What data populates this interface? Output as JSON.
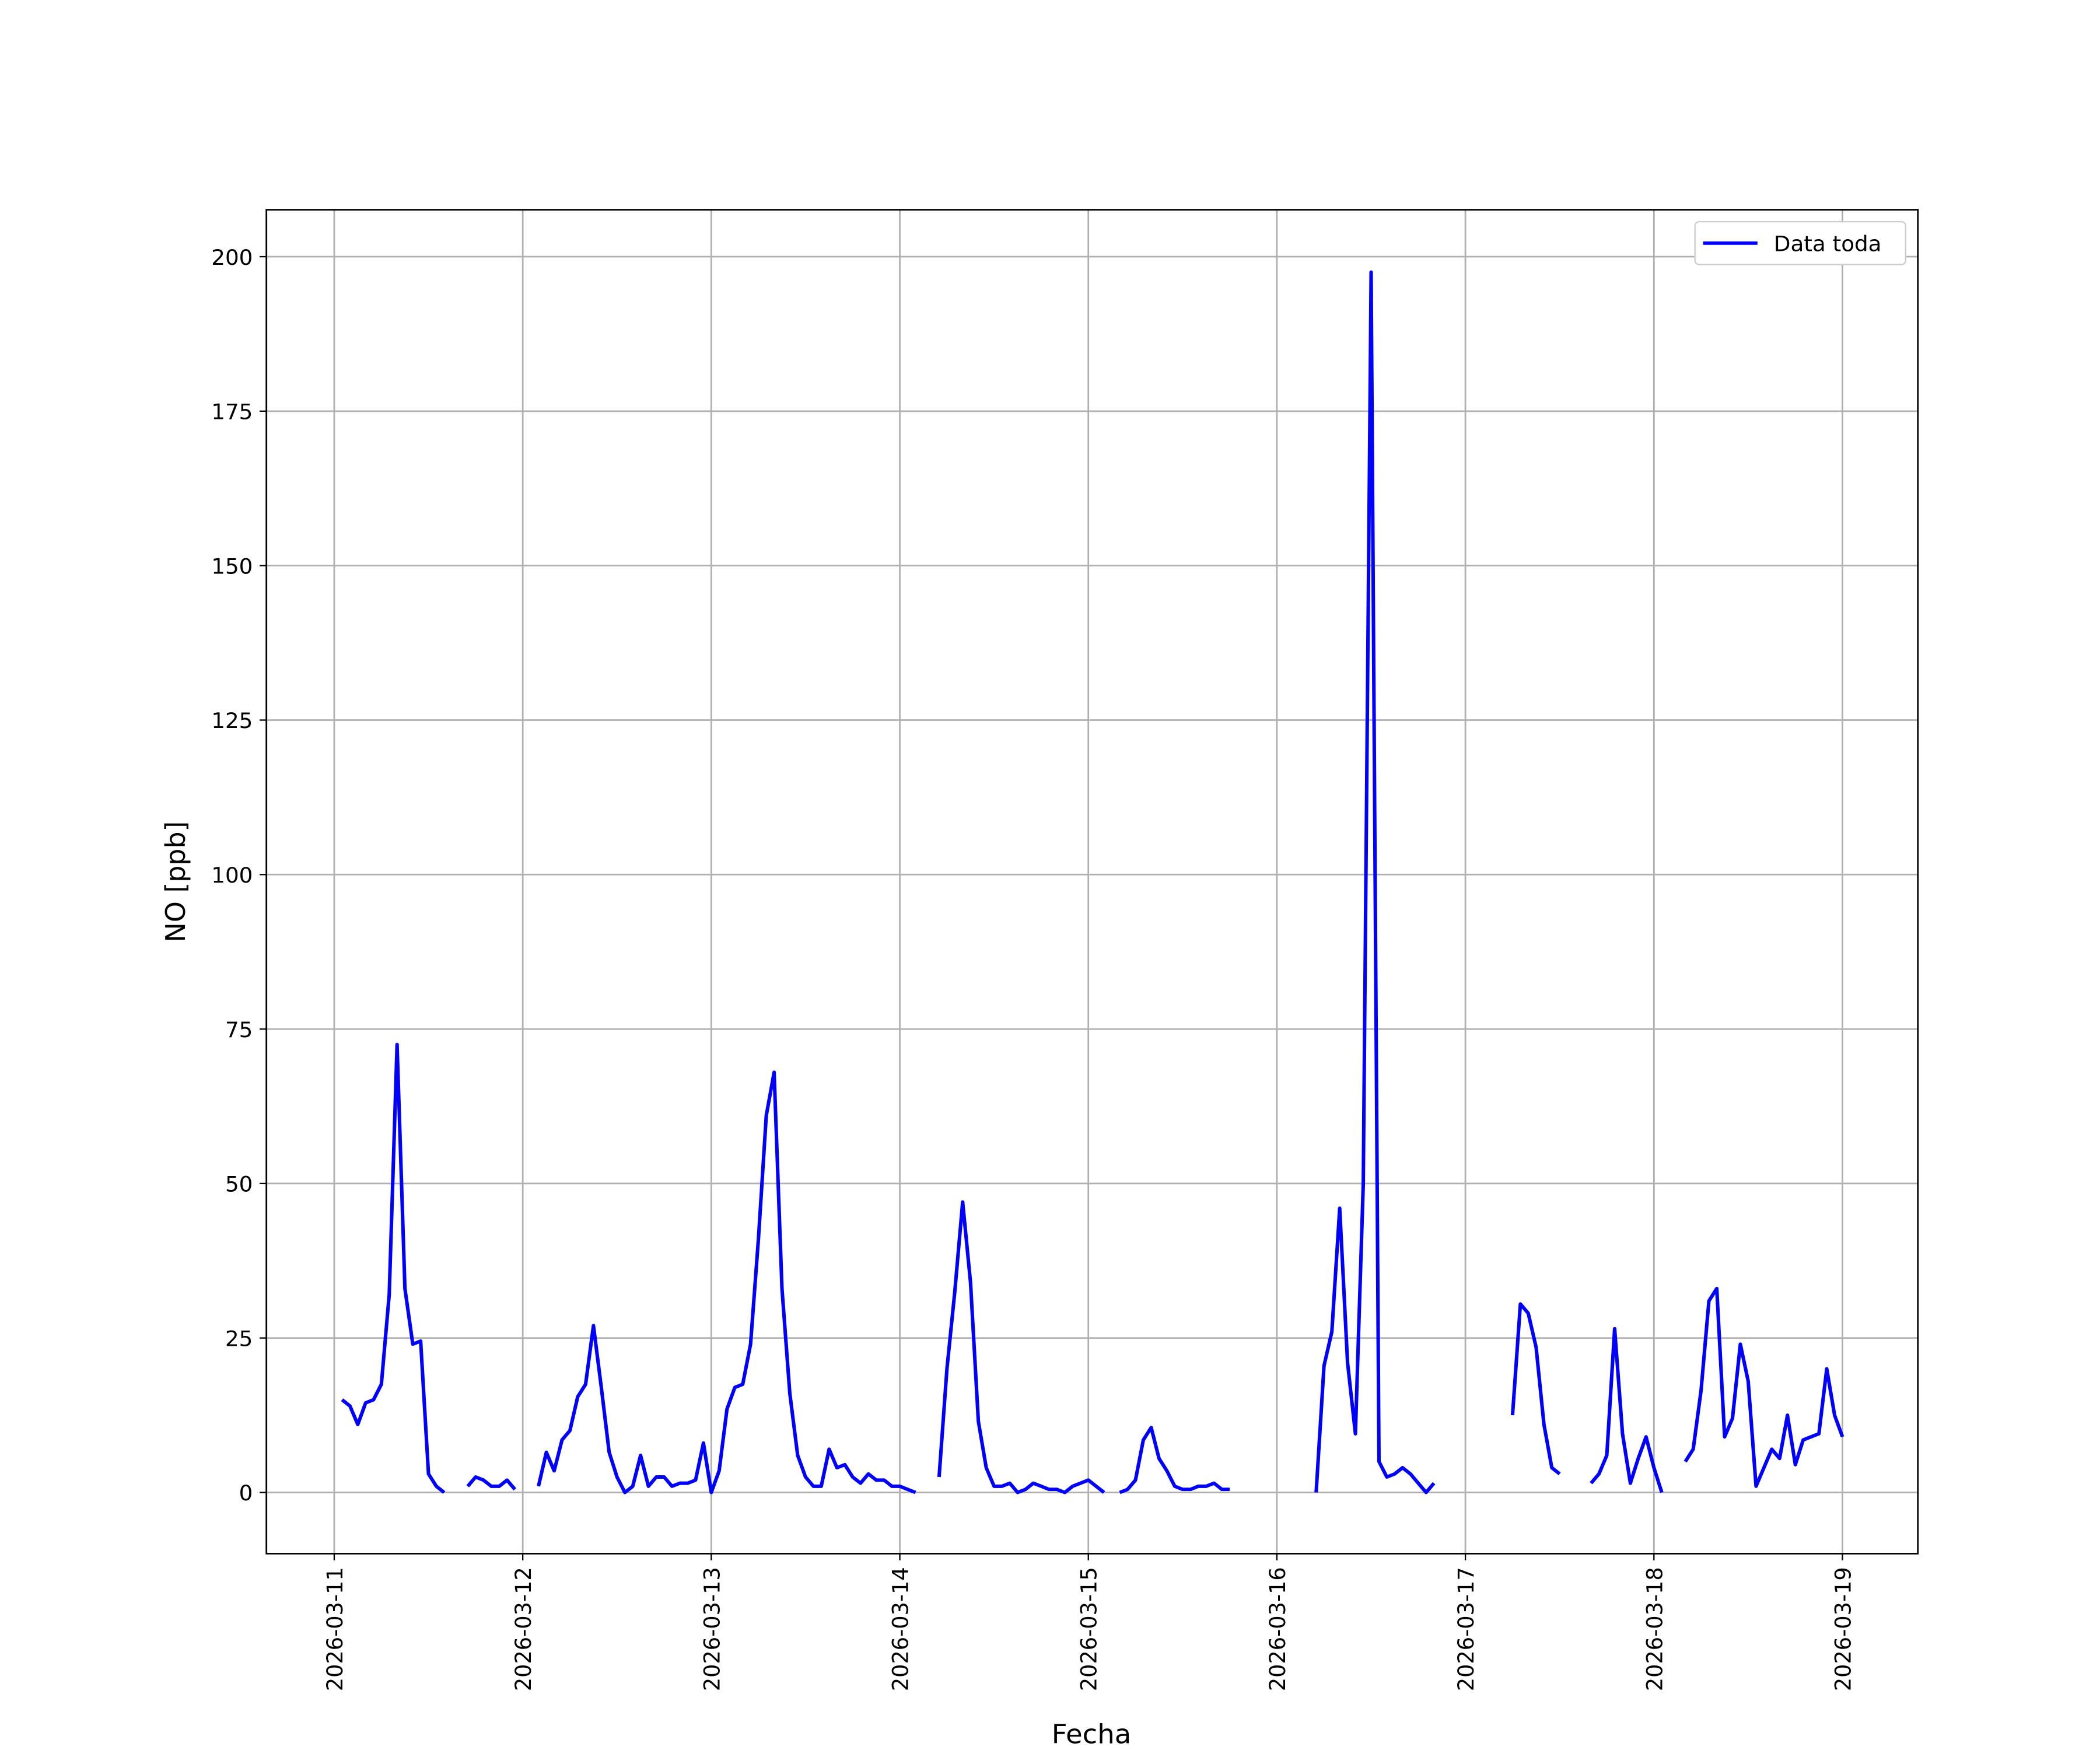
{
  "chart_data": {
    "type": "line",
    "xlabel": "Fecha",
    "ylabel": "NO [ppb]",
    "x": [
      "2026-03-11T01:00",
      "2026-03-11T02:00",
      "2026-03-11T03:00",
      "2026-03-11T04:00",
      "2026-03-11T05:00",
      "2026-03-11T06:00",
      "2026-03-11T07:00",
      "2026-03-11T08:00",
      "2026-03-11T09:00",
      "2026-03-11T10:00",
      "2026-03-11T11:00",
      "2026-03-11T12:00",
      "2026-03-11T13:00",
      "2026-03-11T14:00",
      "2026-03-11T15:00",
      "2026-03-11T17:00",
      "2026-03-11T18:00",
      "2026-03-11T19:00",
      "2026-03-11T20:00",
      "2026-03-11T21:00",
      "2026-03-11T22:00",
      "2026-03-11T23:00",
      "2026-03-12T00:00",
      "2026-03-12T02:00",
      "2026-03-12T03:00",
      "2026-03-12T04:00",
      "2026-03-12T05:00",
      "2026-03-12T06:00",
      "2026-03-12T07:00",
      "2026-03-12T08:00",
      "2026-03-12T09:00",
      "2026-03-12T10:00",
      "2026-03-12T11:00",
      "2026-03-12T12:00",
      "2026-03-12T13:00",
      "2026-03-12T14:00",
      "2026-03-12T15:00",
      "2026-03-12T16:00",
      "2026-03-12T17:00",
      "2026-03-12T18:00",
      "2026-03-12T19:00",
      "2026-03-12T20:00",
      "2026-03-12T21:00",
      "2026-03-12T22:00",
      "2026-03-12T23:00",
      "2026-03-13T00:00",
      "2026-03-13T01:00",
      "2026-03-13T02:00",
      "2026-03-13T03:00",
      "2026-03-13T04:00",
      "2026-03-13T05:00",
      "2026-03-13T06:00",
      "2026-03-13T07:00",
      "2026-03-13T08:00",
      "2026-03-13T09:00",
      "2026-03-13T10:00",
      "2026-03-13T11:00",
      "2026-03-13T12:00",
      "2026-03-13T13:00",
      "2026-03-13T14:00",
      "2026-03-13T15:00",
      "2026-03-13T16:00",
      "2026-03-13T17:00",
      "2026-03-13T18:00",
      "2026-03-13T19:00",
      "2026-03-13T20:00",
      "2026-03-13T21:00",
      "2026-03-13T22:00",
      "2026-03-13T23:00",
      "2026-03-14T00:00",
      "2026-03-14T01:00",
      "2026-03-14T02:00",
      "2026-03-14T03:00",
      "2026-03-14T05:00",
      "2026-03-14T06:00",
      "2026-03-14T07:00",
      "2026-03-14T08:00",
      "2026-03-14T09:00",
      "2026-03-14T10:00",
      "2026-03-14T11:00",
      "2026-03-14T12:00",
      "2026-03-14T13:00",
      "2026-03-14T14:00",
      "2026-03-14T15:00",
      "2026-03-14T16:00",
      "2026-03-14T17:00",
      "2026-03-14T18:00",
      "2026-03-14T19:00",
      "2026-03-14T20:00",
      "2026-03-14T21:00",
      "2026-03-14T22:00",
      "2026-03-14T23:00",
      "2026-03-15T00:00",
      "2026-03-15T01:00",
      "2026-03-15T02:00",
      "2026-03-15T03:00",
      "2026-03-15T04:00",
      "2026-03-15T05:00",
      "2026-03-15T06:00",
      "2026-03-15T07:00",
      "2026-03-15T08:00",
      "2026-03-15T09:00",
      "2026-03-15T10:00",
      "2026-03-15T11:00",
      "2026-03-15T12:00",
      "2026-03-15T13:00",
      "2026-03-15T14:00",
      "2026-03-15T15:00",
      "2026-03-15T16:00",
      "2026-03-15T17:00",
      "2026-03-15T18:00",
      "2026-03-15T19:00",
      "2026-03-16T05:00",
      "2026-03-16T06:00",
      "2026-03-16T07:00",
      "2026-03-16T08:00",
      "2026-03-16T09:00",
      "2026-03-16T10:00",
      "2026-03-16T11:00",
      "2026-03-16T12:00",
      "2026-03-16T13:00",
      "2026-03-16T14:00",
      "2026-03-16T15:00",
      "2026-03-16T16:00",
      "2026-03-16T17:00",
      "2026-03-16T18:00",
      "2026-03-16T19:00",
      "2026-03-16T20:00",
      "2026-03-16T21:00",
      "2026-03-17T06:00",
      "2026-03-17T07:00",
      "2026-03-17T08:00",
      "2026-03-17T09:00",
      "2026-03-17T10:00",
      "2026-03-17T11:00",
      "2026-03-17T12:00",
      "2026-03-17T13:00",
      "2026-03-17T16:00",
      "2026-03-17T17:00",
      "2026-03-17T18:00",
      "2026-03-17T19:00",
      "2026-03-17T20:00",
      "2026-03-17T21:00",
      "2026-03-17T22:00",
      "2026-03-17T23:00",
      "2026-03-18T00:00",
      "2026-03-18T01:00",
      "2026-03-18T02:00",
      "2026-03-18T04:00",
      "2026-03-18T05:00",
      "2026-03-18T06:00",
      "2026-03-18T07:00",
      "2026-03-18T08:00",
      "2026-03-18T09:00",
      "2026-03-18T10:00",
      "2026-03-18T11:00",
      "2026-03-18T12:00",
      "2026-03-18T13:00",
      "2026-03-18T14:00",
      "2026-03-18T15:00",
      "2026-03-18T16:00",
      "2026-03-18T17:00",
      "2026-03-18T18:00",
      "2026-03-18T19:00",
      "2026-03-18T20:00",
      "2026-03-18T21:00",
      "2026-03-18T22:00",
      "2026-03-18T23:00",
      "2026-03-19T00:00"
    ],
    "series": [
      {
        "name": "Data toda",
        "color": "#0000ff",
        "values": [
          15,
          14,
          11,
          14.5,
          15,
          17.5,
          32,
          72.5,
          33,
          24,
          24.5,
          3,
          1,
          0,
          null,
          1,
          2.5,
          2,
          1,
          1,
          2,
          0.5,
          null,
          1,
          6.5,
          3.5,
          8.5,
          10,
          15.5,
          17.5,
          27,
          17,
          6.5,
          2.5,
          0,
          1,
          6,
          1,
          2.5,
          2.5,
          1,
          1.5,
          1.5,
          2,
          8,
          0,
          3.5,
          13.5,
          17,
          17.5,
          24,
          41,
          61,
          68,
          33,
          16,
          6,
          2.5,
          1,
          1,
          7,
          4,
          4.5,
          2.5,
          1.5,
          3,
          2,
          2,
          1,
          1,
          0.5,
          0,
          null,
          2.5,
          20,
          32.5,
          47,
          34,
          11.5,
          4,
          1,
          1,
          1.5,
          0,
          0.5,
          1.5,
          1,
          0.5,
          0.5,
          0,
          1,
          1.5,
          2,
          1,
          0,
          null,
          0,
          0.5,
          2,
          8.5,
          10.5,
          5.5,
          3.5,
          1,
          0.5,
          0.5,
          1,
          1,
          1.5,
          0.5,
          0.5,
          null,
          0,
          20.5,
          26,
          46,
          21,
          9.5,
          50,
          197.5,
          5,
          2.5,
          3,
          4,
          3,
          1.5,
          0,
          1.5,
          null,
          12.5,
          30.5,
          29,
          23.5,
          11,
          4,
          3,
          null,
          1.5,
          3,
          6,
          26.5,
          9.5,
          1.5,
          5.5,
          9,
          4,
          0,
          null,
          5,
          7,
          16.5,
          31,
          33,
          9,
          12,
          24,
          18,
          1,
          4,
          7,
          5.5,
          12.5,
          4.5,
          8.5,
          9,
          9.5,
          20,
          12.5,
          9
        ]
      }
    ],
    "xlim": [
      "2026-03-10T15:22",
      "2026-03-19T09:36"
    ],
    "xticks": [
      "2026-03-11",
      "2026-03-12",
      "2026-03-13",
      "2026-03-14",
      "2026-03-15",
      "2026-03-16",
      "2026-03-17",
      "2026-03-18",
      "2026-03-19"
    ],
    "ylim": [
      -9.9,
      207.6
    ],
    "yticks": [
      0,
      25,
      50,
      75,
      100,
      125,
      150,
      175,
      200
    ],
    "grid": true,
    "legend": "upper right"
  }
}
